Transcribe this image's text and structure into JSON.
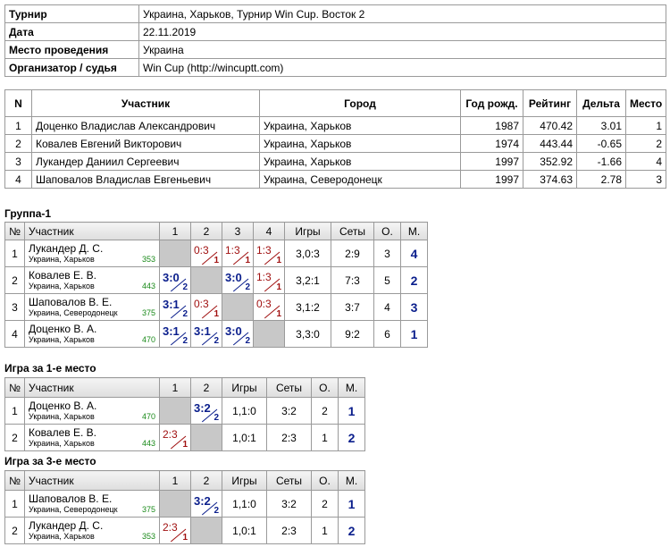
{
  "info": [
    {
      "label": "Турнир",
      "value": "Украина, Харьков, Турнир Win Cup. Восток 2"
    },
    {
      "label": "Дата",
      "value": "22.11.2019"
    },
    {
      "label": "Место проведения",
      "value": "Украина"
    },
    {
      "label": "Организатор / судья",
      "value": "Win Cup (http://wincuptt.com)"
    }
  ],
  "participants": {
    "headers": [
      "N",
      "Участник",
      "Город",
      "Год рожд.",
      "Рейтинг",
      "Дельта",
      "Место"
    ],
    "rows": [
      [
        1,
        "Доценко Владислав Александрович",
        "Украина, Харьков",
        1987,
        470.42,
        3.01,
        1
      ],
      [
        2,
        "Ковалев Евгений Викторович",
        "Украина, Харьков",
        1974,
        443.44,
        -0.65,
        2
      ],
      [
        3,
        "Лукандер Даниил Сергеевич",
        "Украина, Харьков",
        1997,
        352.92,
        -1.66,
        4
      ],
      [
        4,
        "Шаповалов Владислав Евгеньевич",
        "Украина, Северодонецк",
        1997,
        374.63,
        2.78,
        3
      ]
    ]
  },
  "groups": [
    {
      "title": "Группа-1",
      "headers": [
        "№",
        "Участник",
        "1",
        "2",
        "3",
        "4",
        "Игры",
        "Сеты",
        "О.",
        "М."
      ],
      "rows": [
        {
          "n": 1,
          "name": "Лукандер Д. С.",
          "city": "Украина, Харьков",
          "rating": 353,
          "results": [
            null,
            {
              "score": "0:3",
              "points": 1
            },
            {
              "score": "1:3",
              "points": 1
            },
            {
              "score": "1:3",
              "points": 1
            }
          ],
          "games": "3,0:3",
          "sets": "2:9",
          "points": 3,
          "place": 4
        },
        {
          "n": 2,
          "name": "Ковалев Е. В.",
          "city": "Украина, Харьков",
          "rating": 443,
          "results": [
            {
              "score": "3:0",
              "points": 2
            },
            null,
            {
              "score": "3:0",
              "points": 2
            },
            {
              "score": "1:3",
              "points": 1
            }
          ],
          "games": "3,2:1",
          "sets": "7:3",
          "points": 5,
          "place": 2
        },
        {
          "n": 3,
          "name": "Шаповалов В. Е.",
          "city": "Украина, Северодонецк",
          "rating": 375,
          "results": [
            {
              "score": "3:1",
              "points": 2
            },
            {
              "score": "0:3",
              "points": 1
            },
            null,
            {
              "score": "0:3",
              "points": 1
            }
          ],
          "games": "3,1:2",
          "sets": "3:7",
          "points": 4,
          "place": 3
        },
        {
          "n": 4,
          "name": "Доценко В. А.",
          "city": "Украина, Харьков",
          "rating": 470,
          "results": [
            {
              "score": "3:1",
              "points": 2
            },
            {
              "score": "3:1",
              "points": 2
            },
            {
              "score": "3:0",
              "points": 2
            },
            null
          ],
          "games": "3,3:0",
          "sets": "9:2",
          "points": 6,
          "place": 1
        }
      ]
    },
    {
      "title": "Игра за 1-е место",
      "headers": [
        "№",
        "Участник",
        "1",
        "2",
        "Игры",
        "Сеты",
        "О.",
        "М."
      ],
      "rows": [
        {
          "n": 1,
          "name": "Доценко В. А.",
          "city": "Украина, Харьков",
          "rating": 470,
          "results": [
            null,
            {
              "score": "3:2",
              "points": 2
            }
          ],
          "games": "1,1:0",
          "sets": "3:2",
          "points": 2,
          "place": 1
        },
        {
          "n": 2,
          "name": "Ковалев Е. В.",
          "city": "Украина, Харьков",
          "rating": 443,
          "results": [
            {
              "score": "2:3",
              "points": 1
            },
            null
          ],
          "games": "1,0:1",
          "sets": "2:3",
          "points": 1,
          "place": 2
        }
      ]
    },
    {
      "title": "Игра за 3-е место",
      "headers": [
        "№",
        "Участник",
        "1",
        "2",
        "Игры",
        "Сеты",
        "О.",
        "М."
      ],
      "rows": [
        {
          "n": 1,
          "name": "Шаповалов В. Е.",
          "city": "Украина, Северодонецк",
          "rating": 375,
          "results": [
            null,
            {
              "score": "3:2",
              "points": 2
            }
          ],
          "games": "1,1:0",
          "sets": "3:2",
          "points": 2,
          "place": 1
        },
        {
          "n": 2,
          "name": "Лукандер Д. С.",
          "city": "Украина, Харьков",
          "rating": 353,
          "results": [
            {
              "score": "2:3",
              "points": 1
            },
            null
          ],
          "games": "1,0:1",
          "sets": "2:3",
          "points": 1,
          "place": 2
        }
      ]
    }
  ]
}
